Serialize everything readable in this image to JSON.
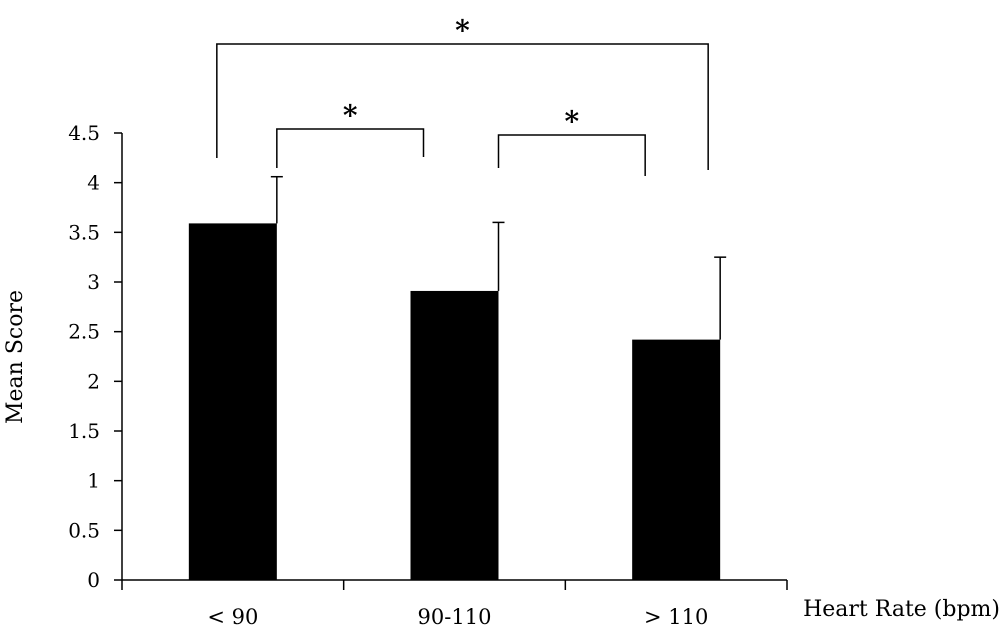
{
  "chart_data": {
    "type": "bar",
    "title": "",
    "xlabel": "Heart Rate (bpm)",
    "ylabel": "Mean Score",
    "categories": [
      "< 90",
      "90-110",
      "> 110"
    ],
    "values": [
      3.59,
      2.91,
      2.42
    ],
    "error_bars": [
      0.47,
      0.69,
      0.83
    ],
    "ylim": [
      0,
      4.5
    ],
    "yticks": [
      "0",
      "0.5",
      "1",
      "1.5",
      "2",
      "2.5",
      "3",
      "3.5",
      "4",
      "4.5"
    ],
    "grid": false,
    "legend": "none",
    "bar_color": "#000000",
    "significance": [
      {
        "from": "< 90",
        "to": "90-110",
        "label": "*"
      },
      {
        "from": "90-110",
        "to": "> 110",
        "label": "*"
      },
      {
        "from": "< 90",
        "to": "> 110",
        "label": "*"
      }
    ]
  }
}
